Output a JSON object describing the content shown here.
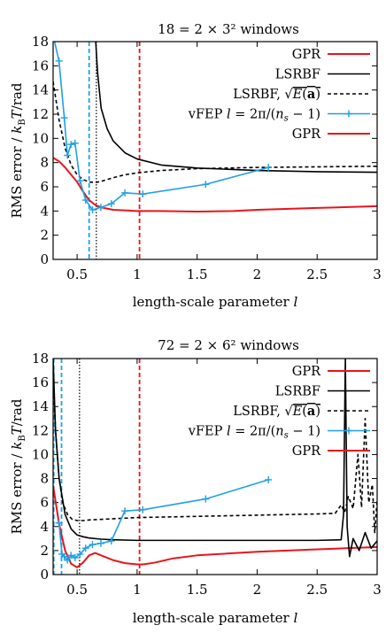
{
  "chart_data": [
    {
      "type": "line",
      "title": "18 = 2 × 3² windows",
      "xlabel": "length-scale parameter l",
      "ylabel": "RMS error / k_BT/rad",
      "xlim": [
        0.3,
        3
      ],
      "ylim": [
        0,
        18
      ],
      "x_ticks": [
        "0.5",
        "1",
        "1.5",
        "2",
        "2.5",
        "3"
      ],
      "x_tick_values": [
        0.5,
        1,
        1.5,
        2,
        2.5,
        3
      ],
      "y_ticks": [
        "0",
        "2",
        "4",
        "6",
        "8",
        "10",
        "12",
        "14",
        "16",
        "18"
      ],
      "y_tick_values": [
        0,
        2,
        4,
        6,
        8,
        10,
        12,
        14,
        16,
        18
      ],
      "grid": false,
      "legend_position": "top-right",
      "legend": [
        "GPR",
        "LSRBF",
        "LSRBF, √E(a)",
        "vFEP l = 2π/(n_s − 1)",
        "GPR"
      ],
      "vlines": [
        {
          "x": 0.6,
          "color": "#1ea0e6",
          "style": "dashed"
        },
        {
          "x": 0.66,
          "color": "#000000",
          "style": "dotted"
        },
        {
          "x": 1.02,
          "color": "#e8141b",
          "style": "dashed"
        }
      ],
      "series": [
        {
          "name": "GPR",
          "color": "#e8141b",
          "style": "solid",
          "markers": false,
          "x": [
            0.3,
            0.35,
            0.4,
            0.45,
            0.5,
            0.55,
            0.6,
            0.65,
            0.7,
            0.8,
            0.9,
            1.0,
            1.2,
            1.5,
            1.8,
            2.0,
            2.5,
            3.0
          ],
          "y": [
            8.4,
            8.1,
            7.6,
            7.0,
            6.4,
            5.6,
            4.9,
            4.5,
            4.3,
            4.1,
            4.05,
            4.0,
            4.0,
            3.95,
            4.0,
            4.1,
            4.25,
            4.4
          ]
        },
        {
          "name": "LSRBF",
          "color": "#000000",
          "style": "solid",
          "markers": false,
          "x": [
            0.655,
            0.67,
            0.7,
            0.75,
            0.8,
            0.9,
            1.0,
            1.2,
            1.5,
            2.0,
            2.5,
            3.0
          ],
          "y": [
            18,
            15.5,
            12.5,
            10.8,
            9.8,
            8.8,
            8.3,
            7.8,
            7.55,
            7.35,
            7.25,
            7.2
          ]
        },
        {
          "name": "LSRBF, √E(a)",
          "color": "#000000",
          "style": "dashed",
          "markers": false,
          "x": [
            0.3,
            0.35,
            0.4,
            0.45,
            0.5,
            0.55,
            0.6,
            0.65,
            0.7,
            0.8,
            0.9,
            1.0,
            1.2,
            1.5,
            2.0,
            2.5,
            3.0
          ],
          "y": [
            14.7,
            11.5,
            9.2,
            7.8,
            7.0,
            6.6,
            6.4,
            6.35,
            6.45,
            6.75,
            7.0,
            7.15,
            7.35,
            7.5,
            7.6,
            7.65,
            7.7
          ]
        },
        {
          "name": "vFEP l = 2π/(n_s − 1)",
          "color": "#1ea0e6",
          "style": "solid",
          "markers": true,
          "x": [
            0.3,
            0.349,
            0.393,
            0.419,
            0.449,
            0.483,
            0.524,
            0.571,
            0.628,
            0.698,
            0.785,
            0.898,
            1.047,
            1.571,
            2.094
          ],
          "y": [
            18.5,
            16.4,
            11.7,
            8.6,
            9.5,
            9.6,
            6.5,
            4.9,
            4.1,
            4.3,
            4.6,
            5.5,
            5.4,
            6.2,
            7.6
          ]
        },
        {
          "name": "GPR",
          "color": "#e8141b",
          "style": "solid",
          "markers": false,
          "x": [],
          "y": []
        }
      ]
    },
    {
      "type": "line",
      "title": "72 = 2 × 6² windows",
      "xlabel": "length-scale parameter l",
      "ylabel": "RMS error / k_BT/rad",
      "xlim": [
        0.3,
        3
      ],
      "ylim": [
        0,
        18
      ],
      "x_ticks": [
        "0.5",
        "1",
        "1.5",
        "2",
        "2.5",
        "3"
      ],
      "x_tick_values": [
        0.5,
        1,
        1.5,
        2,
        2.5,
        3
      ],
      "y_ticks": [
        "0",
        "2",
        "4",
        "6",
        "8",
        "10",
        "12",
        "14",
        "16",
        "18"
      ],
      "y_tick_values": [
        0,
        2,
        4,
        6,
        8,
        10,
        12,
        14,
        16,
        18
      ],
      "grid": false,
      "legend_position": "top-right",
      "legend": [
        "GPR",
        "LSRBF",
        "LSRBF, √E(a)",
        "vFEP l = 2π/(n_s − 1)",
        "GPR"
      ],
      "vlines": [
        {
          "x": 0.305,
          "color": "#1ea0e6",
          "style": "dashed"
        },
        {
          "x": 0.37,
          "color": "#1ea0e6",
          "style": "dashed"
        },
        {
          "x": 0.52,
          "color": "#000000",
          "style": "dotted"
        },
        {
          "x": 1.02,
          "color": "#e8141b",
          "style": "dashed"
        }
      ],
      "series": [
        {
          "name": "GPR",
          "color": "#e8141b",
          "style": "solid",
          "markers": false,
          "x": [
            0.3,
            0.35,
            0.4,
            0.45,
            0.5,
            0.55,
            0.6,
            0.65,
            0.7,
            0.8,
            0.9,
            1.0,
            1.05,
            1.15,
            1.3,
            1.5,
            2.0,
            2.5,
            3.0
          ],
          "y": [
            7.4,
            4.2,
            2.0,
            0.9,
            0.6,
            1.0,
            1.6,
            1.8,
            1.6,
            1.2,
            0.95,
            0.85,
            0.85,
            1.0,
            1.35,
            1.6,
            1.9,
            2.1,
            2.3
          ]
        },
        {
          "name": "LSRBF",
          "color": "#000000",
          "style": "solid",
          "markers": false,
          "x": [
            0.3,
            0.32,
            0.35,
            0.4,
            0.45,
            0.5,
            0.55,
            0.6,
            0.7,
            0.8,
            1.0,
            1.5,
            2.0,
            2.5,
            2.7,
            2.72,
            2.735,
            2.75,
            2.77,
            2.8,
            2.85,
            2.9,
            2.95,
            3.0
          ],
          "y": [
            18,
            12.0,
            8.0,
            5.0,
            3.8,
            3.3,
            3.15,
            3.05,
            2.95,
            2.9,
            2.85,
            2.85,
            2.85,
            2.85,
            2.9,
            5.0,
            18,
            4.0,
            1.5,
            3.0,
            2.0,
            3.5,
            2.2,
            2.8
          ]
        },
        {
          "name": "LSRBF, √E(a)",
          "color": "#000000",
          "style": "dashed",
          "markers": false,
          "x": [
            0.3,
            0.32,
            0.35,
            0.38,
            0.42,
            0.46,
            0.5,
            0.55,
            0.6,
            0.8,
            1.0,
            1.5,
            2.0,
            2.5,
            2.65,
            2.7,
            2.73,
            2.76,
            2.8,
            2.84,
            2.87,
            2.9,
            2.93,
            2.96,
            2.98,
            3.0
          ],
          "y": [
            17.0,
            12.0,
            8.0,
            6.0,
            5.0,
            4.6,
            4.5,
            4.5,
            4.55,
            4.65,
            4.75,
            4.85,
            4.95,
            5.05,
            5.1,
            5.8,
            5.2,
            6.5,
            5.5,
            10.0,
            5.6,
            13.0,
            6.0,
            7.5,
            3.5,
            6.2
          ]
        },
        {
          "name": "vFEP l = 2π/(n_s − 1)",
          "color": "#1ea0e6",
          "style": "solid",
          "markers": true,
          "x": [
            0.349,
            0.374,
            0.393,
            0.419,
            0.449,
            0.483,
            0.524,
            0.571,
            0.628,
            0.698,
            0.785,
            0.898,
            1.047,
            1.571,
            2.094
          ],
          "y": [
            4.3,
            1.7,
            1.5,
            1.2,
            1.6,
            1.4,
            1.7,
            2.2,
            2.5,
            2.6,
            2.8,
            5.3,
            5.4,
            6.3,
            7.9
          ]
        },
        {
          "name": "GPR",
          "color": "#e8141b",
          "style": "solid",
          "markers": false,
          "x": [],
          "y": []
        }
      ]
    }
  ]
}
